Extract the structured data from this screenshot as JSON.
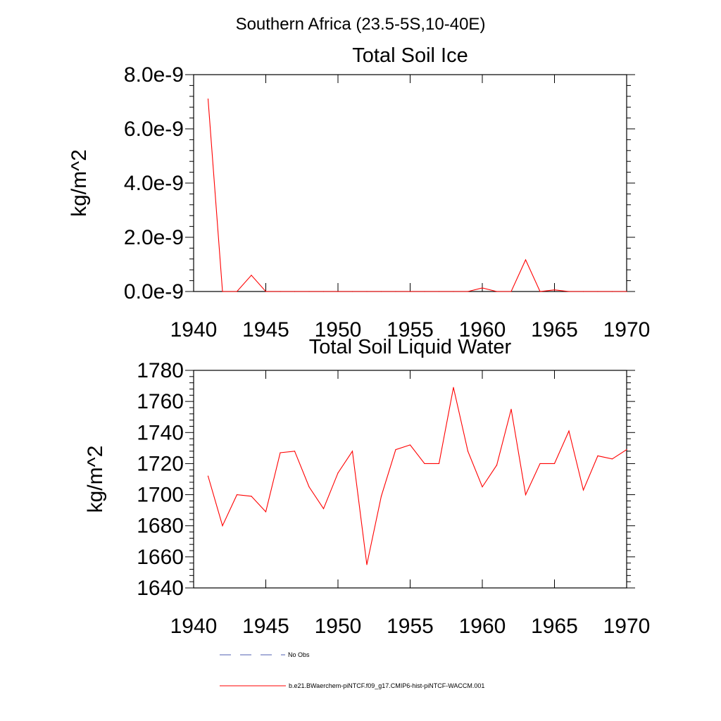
{
  "suptitle": "Southern Africa (23.5-5S,10-40E)",
  "colors": {
    "model": "#ff0000",
    "obs": "#4f5fb0",
    "axes": "#000000"
  },
  "chart_data": [
    {
      "type": "line",
      "title": "Total Soil Ice",
      "ylabel": "kg/m^2",
      "xlabel": "",
      "xlim": [
        1940,
        1970
      ],
      "ylim": [
        0,
        8e-09
      ],
      "xticks": [
        1940,
        1945,
        1950,
        1955,
        1960,
        1965,
        1970
      ],
      "xtick_labels": [
        "1940",
        "1945",
        "1950",
        "1955",
        "1960",
        "1965",
        "1970"
      ],
      "yticks": [
        0,
        2e-09,
        4e-09,
        6e-09,
        8e-09
      ],
      "ytick_labels": [
        "0.0e-9",
        "2.0e-9",
        "4.0e-9",
        "6.0e-9",
        "8.0e-9"
      ],
      "grid": false,
      "series": [
        {
          "name": "b.e21.BWaerchem-piNTCF.f09_g17.CMIP6-hist-piNTCF-WACCM.001",
          "x": [
            1941,
            1942,
            1943,
            1944,
            1945,
            1946,
            1947,
            1948,
            1949,
            1950,
            1951,
            1952,
            1953,
            1954,
            1955,
            1956,
            1957,
            1958,
            1959,
            1960,
            1961,
            1962,
            1963,
            1964,
            1965,
            1966,
            1967,
            1968,
            1969,
            1970
          ],
          "y": [
            7.1e-09,
            0,
            0,
            6e-10,
            0,
            0,
            0,
            0,
            0,
            0,
            0,
            0,
            0,
            0,
            0,
            0,
            0,
            0,
            0,
            1.3e-10,
            0,
            0,
            1.17e-09,
            0,
            6e-11,
            0,
            0,
            0,
            0,
            0
          ]
        }
      ]
    },
    {
      "type": "line",
      "title": "Total Soil Liquid Water",
      "ylabel": "kg/m^2",
      "xlabel": "",
      "xlim": [
        1940,
        1970
      ],
      "ylim": [
        1640,
        1780
      ],
      "xticks": [
        1940,
        1945,
        1950,
        1955,
        1960,
        1965,
        1970
      ],
      "xtick_labels": [
        "1940",
        "1945",
        "1950",
        "1955",
        "1960",
        "1965",
        "1970"
      ],
      "yticks": [
        1640,
        1660,
        1680,
        1700,
        1720,
        1740,
        1760,
        1780
      ],
      "ytick_labels": [
        "1640",
        "1660",
        "1680",
        "1700",
        "1720",
        "1740",
        "1760",
        "1780"
      ],
      "grid": false,
      "series": [
        {
          "name": "b.e21.BWaerchem-piNTCF.f09_g17.CMIP6-hist-piNTCF-WACCM.001",
          "x": [
            1941,
            1942,
            1943,
            1944,
            1945,
            1946,
            1947,
            1948,
            1949,
            1950,
            1951,
            1952,
            1953,
            1954,
            1955,
            1956,
            1957,
            1958,
            1959,
            1960,
            1961,
            1962,
            1963,
            1964,
            1965,
            1966,
            1967,
            1968,
            1969,
            1970
          ],
          "y": [
            1712,
            1680,
            1700,
            1699,
            1689,
            1727,
            1728,
            1705,
            1691,
            1714,
            1728,
            1655,
            1699,
            1729,
            1732,
            1720,
            1720,
            1769,
            1728,
            1705,
            1719,
            1755,
            1700,
            1720,
            1720,
            1741,
            1703,
            1725,
            1723,
            1729
          ]
        }
      ]
    }
  ],
  "legend": {
    "placement": "bottom",
    "entries": [
      {
        "label": "No Obs",
        "style": "dashed",
        "color": "#4f5fb0"
      },
      {
        "label": "b.e21.BWaerchem-piNTCF.f09_g17.CMIP6-hist-piNTCF-WACCM.001",
        "style": "solid",
        "color": "#ff0000"
      }
    ]
  }
}
